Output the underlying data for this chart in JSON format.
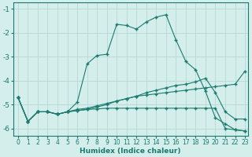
{
  "xlabel": "Humidex (Indice chaleur)",
  "bg_color": "#d4eeec",
  "line_color": "#1a7a6e",
  "grid_color": "#b8d8d5",
  "xlim": [
    -0.5,
    23.3
  ],
  "ylim": [
    -6.3,
    -0.75
  ],
  "xticks": [
    0,
    1,
    2,
    3,
    4,
    5,
    6,
    7,
    8,
    9,
    10,
    11,
    12,
    13,
    14,
    15,
    16,
    17,
    18,
    19,
    20,
    21,
    22,
    23
  ],
  "yticks": [
    -1,
    -2,
    -3,
    -4,
    -5,
    -6
  ],
  "line1_x": [
    0,
    1,
    2,
    3,
    4,
    5,
    6,
    7,
    8,
    9,
    10,
    11,
    12,
    13,
    14,
    15,
    16,
    17,
    18,
    19,
    20,
    21,
    22,
    23
  ],
  "line1_y": [
    -4.7,
    -5.7,
    -5.3,
    -5.3,
    -5.4,
    -5.3,
    -4.9,
    -3.3,
    -2.95,
    -2.9,
    -1.65,
    -1.7,
    -1.85,
    -1.55,
    -1.35,
    -1.25,
    -2.3,
    -3.2,
    -3.55,
    -4.45,
    -5.55,
    -5.8,
    -6.05,
    -6.1
  ],
  "line2_x": [
    0,
    1,
    2,
    3,
    4,
    5,
    6,
    7,
    8,
    9,
    10,
    11,
    12,
    13,
    14,
    15,
    16,
    17,
    18,
    19,
    20,
    21,
    22,
    23
  ],
  "line2_y": [
    -4.7,
    -5.7,
    -5.3,
    -5.3,
    -5.4,
    -5.3,
    -5.2,
    -5.15,
    -5.05,
    -4.95,
    -4.85,
    -4.75,
    -4.65,
    -4.6,
    -4.55,
    -4.5,
    -4.45,
    -4.4,
    -4.35,
    -4.3,
    -4.25,
    -4.2,
    -4.15,
    -3.6
  ],
  "line3_x": [
    0,
    1,
    2,
    3,
    4,
    5,
    6,
    7,
    8,
    9,
    10,
    11,
    12,
    13,
    14,
    15,
    16,
    17,
    18,
    19,
    20,
    21,
    22,
    23
  ],
  "line3_y": [
    -4.7,
    -5.7,
    -5.3,
    -5.3,
    -5.4,
    -5.3,
    -5.25,
    -5.2,
    -5.18,
    -5.15,
    -5.15,
    -5.15,
    -5.15,
    -5.15,
    -5.15,
    -5.15,
    -5.15,
    -5.15,
    -5.15,
    -5.15,
    -5.15,
    -6.0,
    -6.05,
    -6.1
  ],
  "line4_x": [
    0,
    1,
    2,
    3,
    4,
    5,
    6,
    7,
    8,
    9,
    10,
    11,
    12,
    13,
    14,
    15,
    16,
    17,
    18,
    19,
    20,
    21,
    22,
    23
  ],
  "line4_y": [
    -4.7,
    -5.7,
    -5.3,
    -5.3,
    -5.4,
    -5.3,
    -5.25,
    -5.2,
    -5.1,
    -5.0,
    -4.85,
    -4.75,
    -4.65,
    -4.5,
    -4.4,
    -4.3,
    -4.2,
    -4.15,
    -4.05,
    -3.9,
    -4.5,
    -5.3,
    -5.6,
    -5.6
  ]
}
